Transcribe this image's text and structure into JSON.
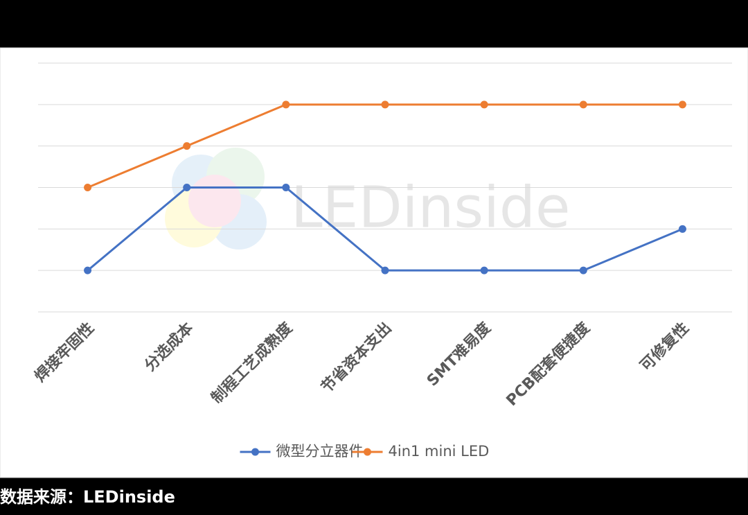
{
  "chart_data": {
    "type": "line",
    "categories": [
      "焊接牢固性",
      "分选成本",
      "制程工艺成熟度",
      "节省资本支出",
      "SMT难易度",
      "PCB配套便捷度",
      "可修复性"
    ],
    "series": [
      {
        "name": "微型分立器件",
        "color": "#4472c4",
        "values": [
          1,
          3,
          3,
          1,
          1,
          1,
          2
        ]
      },
      {
        "name": "4in1 mini LED",
        "color": "#ed7d31",
        "values": [
          3,
          4,
          5,
          5,
          5,
          5,
          5
        ]
      }
    ],
    "ylim": [
      0,
      6
    ],
    "yticks": [
      0,
      1,
      2,
      3,
      4,
      5,
      6
    ],
    "show_ytick_labels": false,
    "grid": true,
    "legend": "bottom",
    "watermark": "LEDinside"
  },
  "source": "数据来源：LEDinside"
}
